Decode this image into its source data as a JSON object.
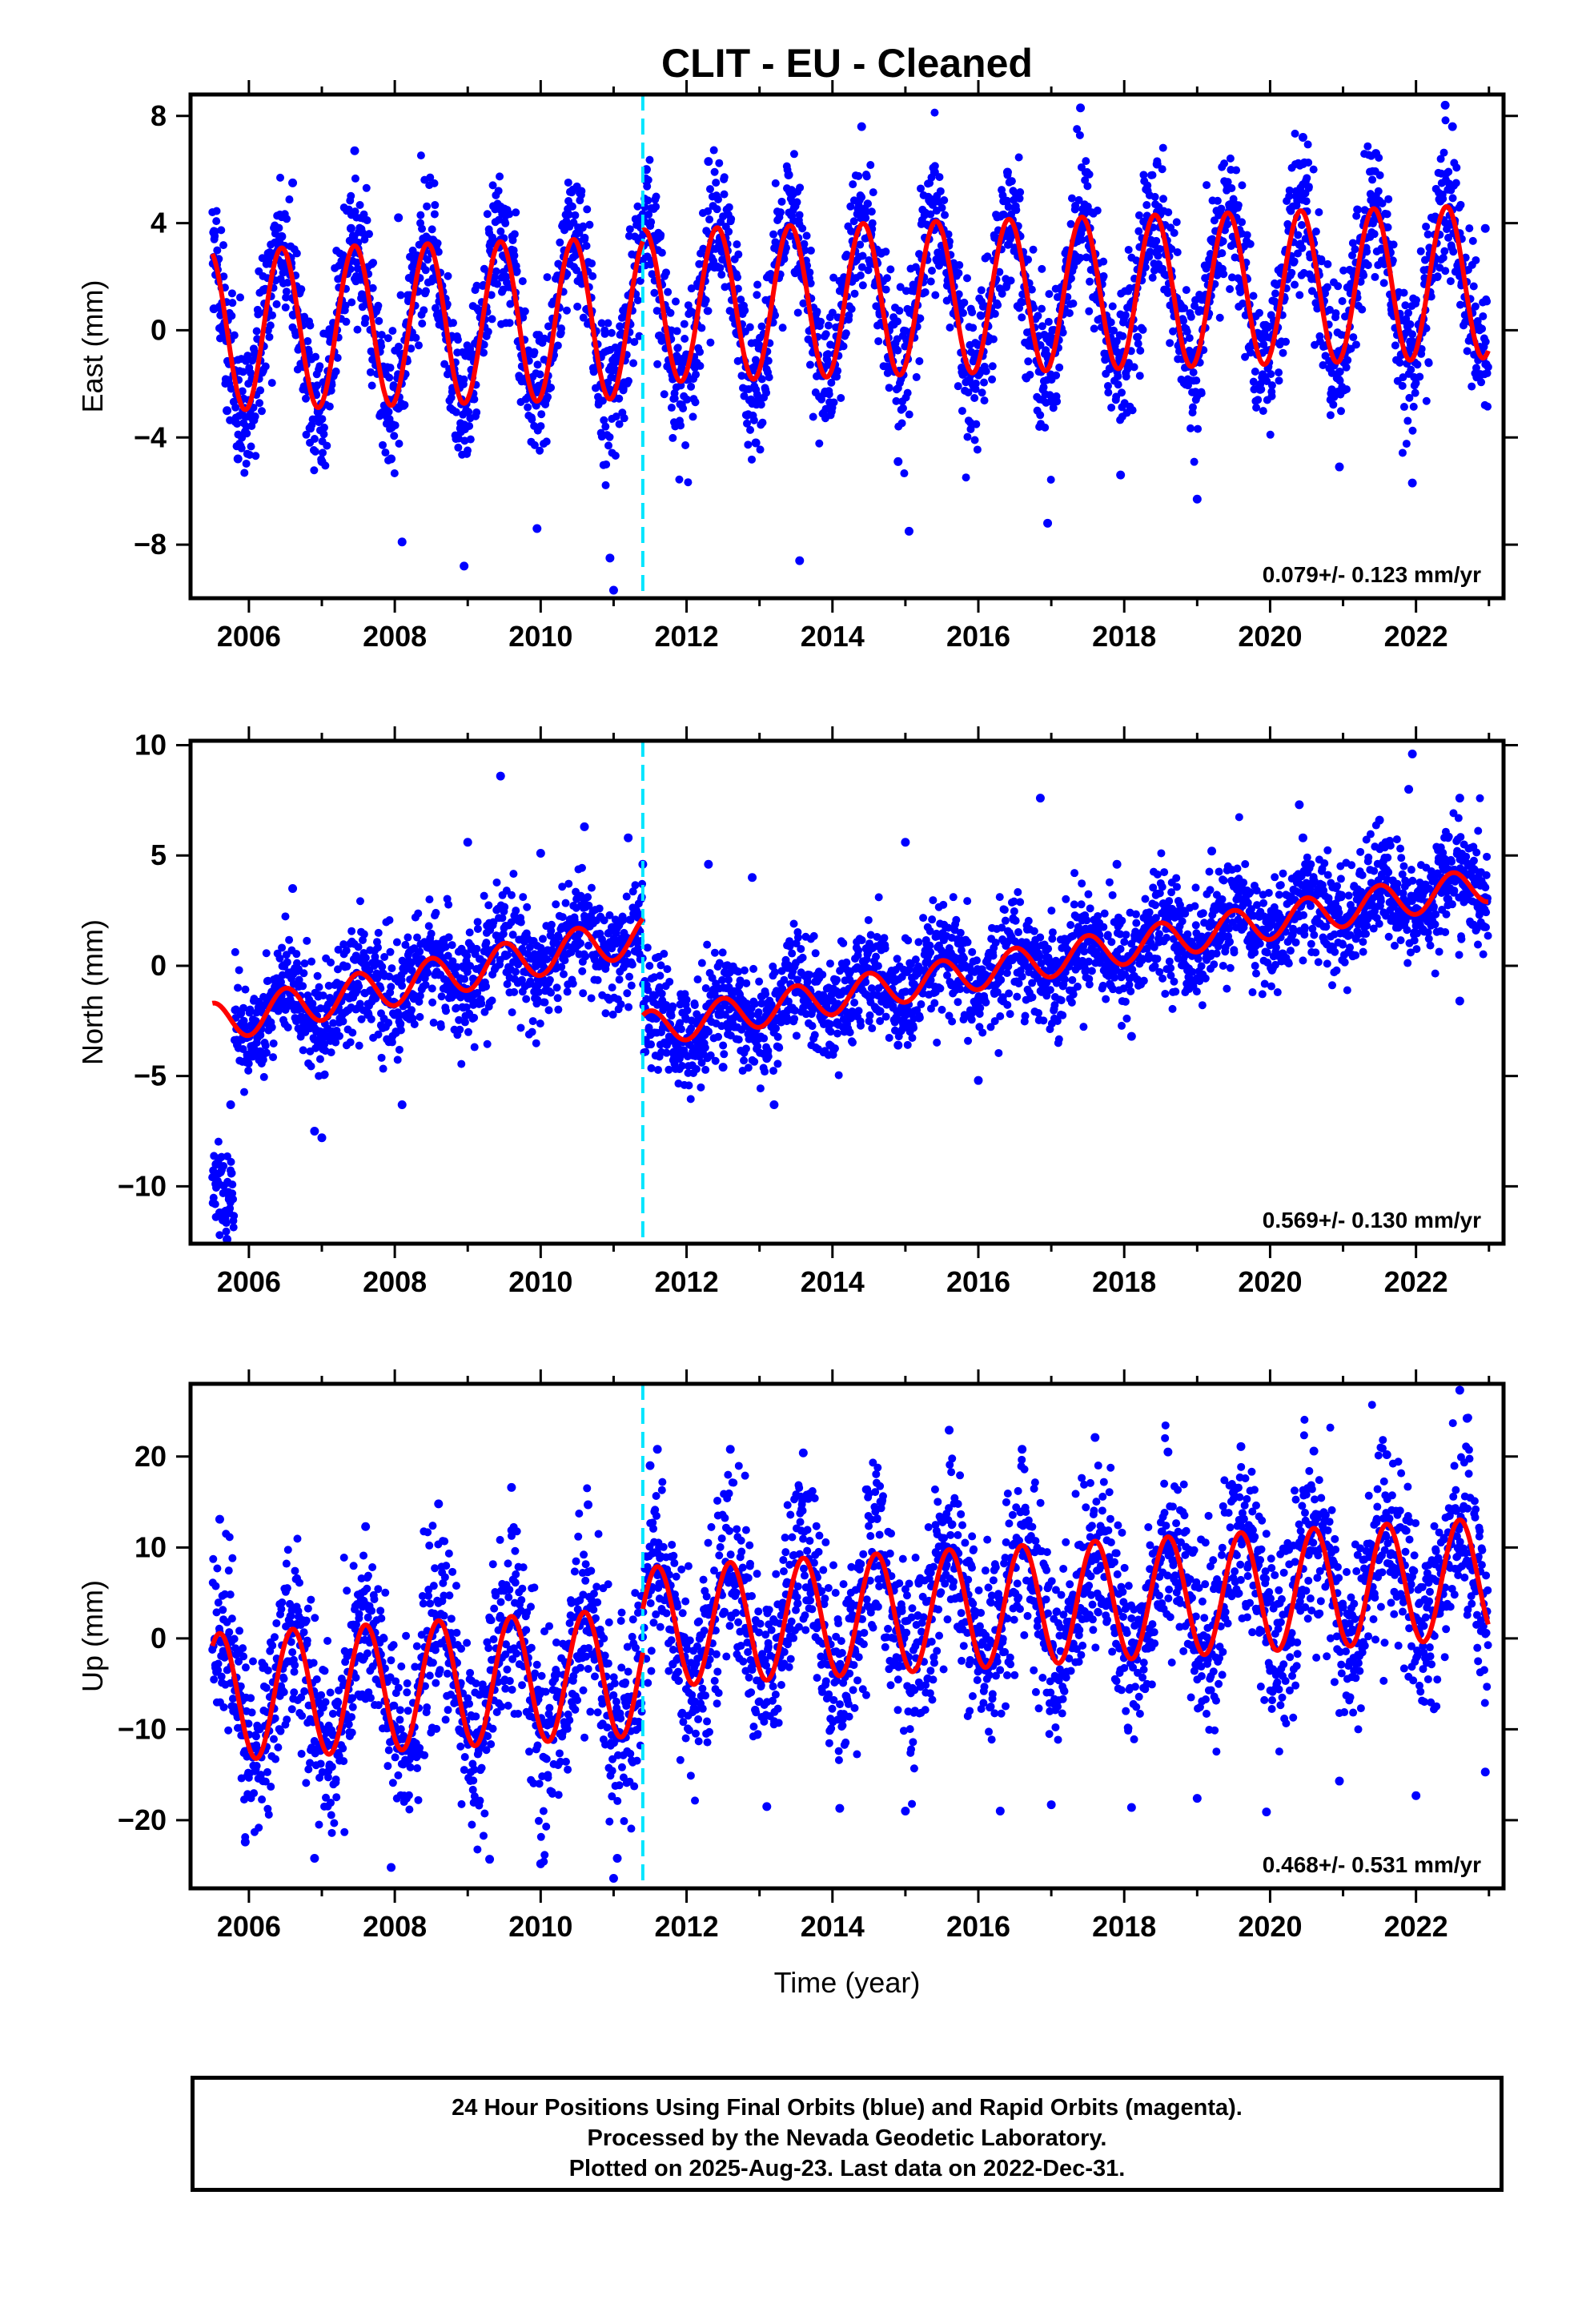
{
  "title": "CLIT  - EU - Cleaned",
  "xlabel": "Time (year)",
  "caption": {
    "line1": "24 Hour Positions Using Final Orbits (blue) and Rapid Orbits (magenta).",
    "line2": "Processed by the Nevada Geodetic Laboratory.",
    "line3": "Plotted on 2025-Aug-23. Last data on 2022-Dec-31."
  },
  "colors": {
    "final_orbits": "#0000ff",
    "model": "#ff0000",
    "offset_marker": "#00e5ff"
  },
  "chart_data": [
    {
      "type": "scatter",
      "ylabel": "East (mm)",
      "rate_text": "0.079+/- 0.123 mm/yr",
      "xlim": [
        2005.2,
        2023.2
      ],
      "ylim": [
        -10,
        8.8
      ],
      "yticks": [
        -8,
        -4,
        0,
        4,
        8
      ],
      "xticks": [
        2006,
        2008,
        2010,
        2012,
        2014,
        2016,
        2018,
        2020,
        2022
      ],
      "offset_epoch": 2011.4,
      "data_start": 2005.5,
      "data_end": 2022.99,
      "model": {
        "segments": [
          {
            "start": 2005.5,
            "end": 2011.4,
            "mean": 0.0,
            "slope": 0.079,
            "amplitude": 3.0,
            "peak": 2006.45
          },
          {
            "start": 2011.4,
            "end": 2022.99,
            "mean": 0.9,
            "slope": 0.079,
            "amplitude": 2.85,
            "peak": 2012.42
          }
        ]
      },
      "scatter_sigma": 1.3,
      "series": [
        {
          "name": "Final Orbits (blue)",
          "values": [
            [
              2005.52,
              0.8
            ],
            [
              2005.7,
              -3.0
            ],
            [
              2005.85,
              -4.8
            ],
            [
              2006.2,
              1.5
            ],
            [
              2006.45,
              3.5
            ],
            [
              2006.6,
              5.5
            ],
            [
              2007.0,
              -4.9
            ],
            [
              2007.4,
              3.8
            ],
            [
              2007.45,
              6.7
            ],
            [
              2007.95,
              -4.8
            ],
            [
              2008.05,
              4.2
            ],
            [
              2008.1,
              -7.9
            ],
            [
              2008.45,
              3.2
            ],
            [
              2008.95,
              -8.8
            ],
            [
              2009.45,
              4.6
            ],
            [
              2009.95,
              -7.4
            ],
            [
              2010.45,
              3.3
            ],
            [
              2010.95,
              -8.5
            ],
            [
              2011.0,
              -9.7
            ],
            [
              2011.45,
              6.0
            ],
            [
              2012.3,
              6.3
            ],
            [
              2012.95,
              -4.2
            ],
            [
              2013.4,
              5.8
            ],
            [
              2013.55,
              -8.6
            ],
            [
              2014.4,
              7.6
            ],
            [
              2014.9,
              -4.9
            ],
            [
              2015.05,
              -7.5
            ],
            [
              2015.4,
              5.9
            ],
            [
              2016.4,
              5.9
            ],
            [
              2016.95,
              -7.2
            ],
            [
              2017.4,
              8.3
            ],
            [
              2017.95,
              -5.4
            ],
            [
              2018.45,
              6.2
            ],
            [
              2019.0,
              -6.3
            ],
            [
              2019.4,
              5.5
            ],
            [
              2020.45,
              7.2
            ],
            [
              2020.95,
              -5.1
            ],
            [
              2021.45,
              6.6
            ],
            [
              2021.95,
              -5.7
            ],
            [
              2022.4,
              8.4
            ],
            [
              2022.5,
              7.6
            ],
            [
              2022.95,
              3.8
            ]
          ]
        }
      ]
    },
    {
      "type": "scatter",
      "ylabel": "North (mm)",
      "rate_text": "0.569+/- 0.130 mm/yr",
      "xlim": [
        2005.2,
        2023.2
      ],
      "ylim": [
        -12.6,
        10.2
      ],
      "yticks": [
        -10,
        -5,
        0,
        5,
        10
      ],
      "xticks": [
        2006,
        2008,
        2010,
        2012,
        2014,
        2016,
        2018,
        2020,
        2022
      ],
      "offset_epoch": 2011.4,
      "data_start": 2005.5,
      "data_end": 2022.99,
      "model": {
        "segments": [
          {
            "start": 2005.5,
            "end": 2011.4,
            "mean": -2.6,
            "slope": 0.68,
            "amplitude": 0.9,
            "peak": 2006.5
          },
          {
            "start": 2011.4,
            "end": 2022.99,
            "mean": -2.9,
            "slope": 0.569,
            "amplitude": 0.8,
            "peak": 2012.5
          }
        ]
      },
      "scatter_sigma": 1.2,
      "early_cluster": {
        "start": 2005.5,
        "end": 2005.8,
        "mean": -10.0,
        "sigma": 1.2
      },
      "series": [
        {
          "name": "Final Orbits (blue)",
          "values": [
            [
              2005.55,
              -9.0
            ],
            [
              2005.6,
              -11.2
            ],
            [
              2005.7,
              -12.4
            ],
            [
              2005.75,
              -6.3
            ],
            [
              2006.6,
              3.5
            ],
            [
              2006.9,
              -7.5
            ],
            [
              2007.0,
              -7.8
            ],
            [
              2008.1,
              -6.3
            ],
            [
              2009.0,
              5.6
            ],
            [
              2009.45,
              8.6
            ],
            [
              2010.0,
              5.1
            ],
            [
              2010.6,
              6.3
            ],
            [
              2011.2,
              5.8
            ],
            [
              2011.4,
              4.6
            ],
            [
              2011.9,
              -4.2
            ],
            [
              2012.3,
              4.6
            ],
            [
              2012.5,
              -4.6
            ],
            [
              2012.9,
              4.0
            ],
            [
              2013.1,
              -4.2
            ],
            [
              2013.2,
              -6.3
            ],
            [
              2014.9,
              -3.6
            ],
            [
              2015.0,
              5.6
            ],
            [
              2016.0,
              -5.2
            ],
            [
              2016.85,
              7.6
            ],
            [
              2017.9,
              4.6
            ],
            [
              2018.1,
              -3.2
            ],
            [
              2019.2,
              5.2
            ],
            [
              2020.4,
              7.3
            ],
            [
              2020.45,
              5.8
            ],
            [
              2021.5,
              6.6
            ],
            [
              2021.9,
              8.0
            ],
            [
              2021.95,
              9.6
            ],
            [
              2022.6,
              7.6
            ],
            [
              2022.6,
              -1.6
            ]
          ]
        }
      ]
    },
    {
      "type": "scatter",
      "ylabel": "Up (mm)",
      "rate_text": "0.468+/- 0.531 mm/yr",
      "xlim": [
        2005.2,
        2023.2
      ],
      "ylim": [
        -27.5,
        28.0
      ],
      "yticks": [
        -20,
        -10,
        0,
        10,
        20
      ],
      "xticks": [
        2006,
        2008,
        2010,
        2012,
        2014,
        2016,
        2018,
        2020,
        2022
      ],
      "offset_epoch": 2011.4,
      "data_start": 2005.5,
      "data_end": 2022.99,
      "model": {
        "segments": [
          {
            "start": 2005.5,
            "end": 2011.4,
            "mean": -6.5,
            "slope": 0.468,
            "amplitude": 7.0,
            "peak": 2006.6
          },
          {
            "start": 2011.4,
            "end": 2022.99,
            "mean": 1.2,
            "slope": 0.468,
            "amplitude": 6.6,
            "peak": 2012.6
          }
        ]
      },
      "scatter_sigma": 5.0,
      "series": [
        {
          "name": "Final Orbits (blue)",
          "values": [
            [
              2005.6,
              13.1
            ],
            [
              2005.95,
              -22.4
            ],
            [
              2006.9,
              -24.2
            ],
            [
              2007.6,
              12.3
            ],
            [
              2007.95,
              -25.2
            ],
            [
              2008.6,
              14.8
            ],
            [
              2009.3,
              -24.3
            ],
            [
              2009.6,
              16.6
            ],
            [
              2010.0,
              -24.8
            ],
            [
              2010.65,
              14.7
            ],
            [
              2011.0,
              -26.4
            ],
            [
              2011.05,
              -24.2
            ],
            [
              2011.5,
              19.0
            ],
            [
              2011.6,
              20.8
            ],
            [
              2012.6,
              20.8
            ],
            [
              2013.1,
              -18.5
            ],
            [
              2013.6,
              20.4
            ],
            [
              2014.1,
              -18.7
            ],
            [
              2015.0,
              -19.0
            ],
            [
              2015.6,
              22.9
            ],
            [
              2016.3,
              -19.0
            ],
            [
              2016.6,
              20.8
            ],
            [
              2017.0,
              -18.3
            ],
            [
              2017.6,
              22.1
            ],
            [
              2018.1,
              -18.6
            ],
            [
              2018.6,
              20.5
            ],
            [
              2019.0,
              -17.6
            ],
            [
              2019.6,
              21.1
            ],
            [
              2019.95,
              -19.1
            ],
            [
              2020.6,
              20.6
            ],
            [
              2020.95,
              -15.7
            ],
            [
              2021.6,
              20.2
            ],
            [
              2022.0,
              -17.3
            ],
            [
              2022.6,
              27.3
            ],
            [
              2022.7,
              24.2
            ],
            [
              2022.95,
              -14.7
            ]
          ]
        }
      ]
    }
  ]
}
